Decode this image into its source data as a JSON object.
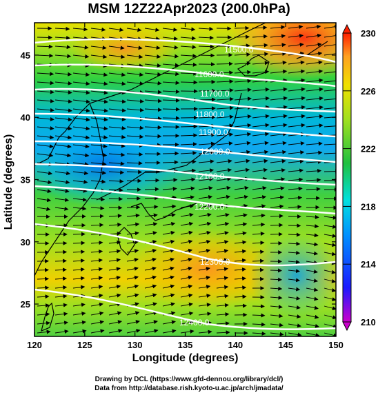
{
  "title": "MSM 12Z22Apr2023 (200.0hPa)",
  "x_axis": {
    "label": "Longitude (degrees)",
    "range": [
      120,
      150
    ],
    "ticks": [
      "120",
      "125",
      "130",
      "135",
      "140",
      "145",
      "150"
    ]
  },
  "y_axis": {
    "label": "Latitude  (degrees)",
    "range": [
      22.4,
      47.6
    ],
    "ticks": [
      "25",
      "30",
      "35",
      "40",
      "45"
    ]
  },
  "colorbar": {
    "ticks": [
      "210",
      "214",
      "218",
      "222",
      "226",
      "230"
    ],
    "range": [
      210,
      230
    ],
    "colors": [
      "#cc00cc",
      "#1a1aff",
      "#00a0ff",
      "#00e0e0",
      "#20c040",
      "#a0e020",
      "#f0e000",
      "#ffa020",
      "#ff2000"
    ]
  },
  "contours": {
    "color": "#ffffff",
    "labels": [
      "11500.0",
      "11600.0",
      "11700.0",
      "11800.0",
      "11900.0",
      "12000.0",
      "12100.0",
      "12200.0",
      "12300.0",
      "12400.0"
    ]
  },
  "wind_vectors": {
    "direction": "westerly"
  },
  "footer": {
    "line1": "Drawing by DCL (https://www.gfd-dennou.org/library/dcl/)",
    "line2": "Data from http://database.rish.kyoto-u.ac.jp/arch/jmadata/"
  }
}
